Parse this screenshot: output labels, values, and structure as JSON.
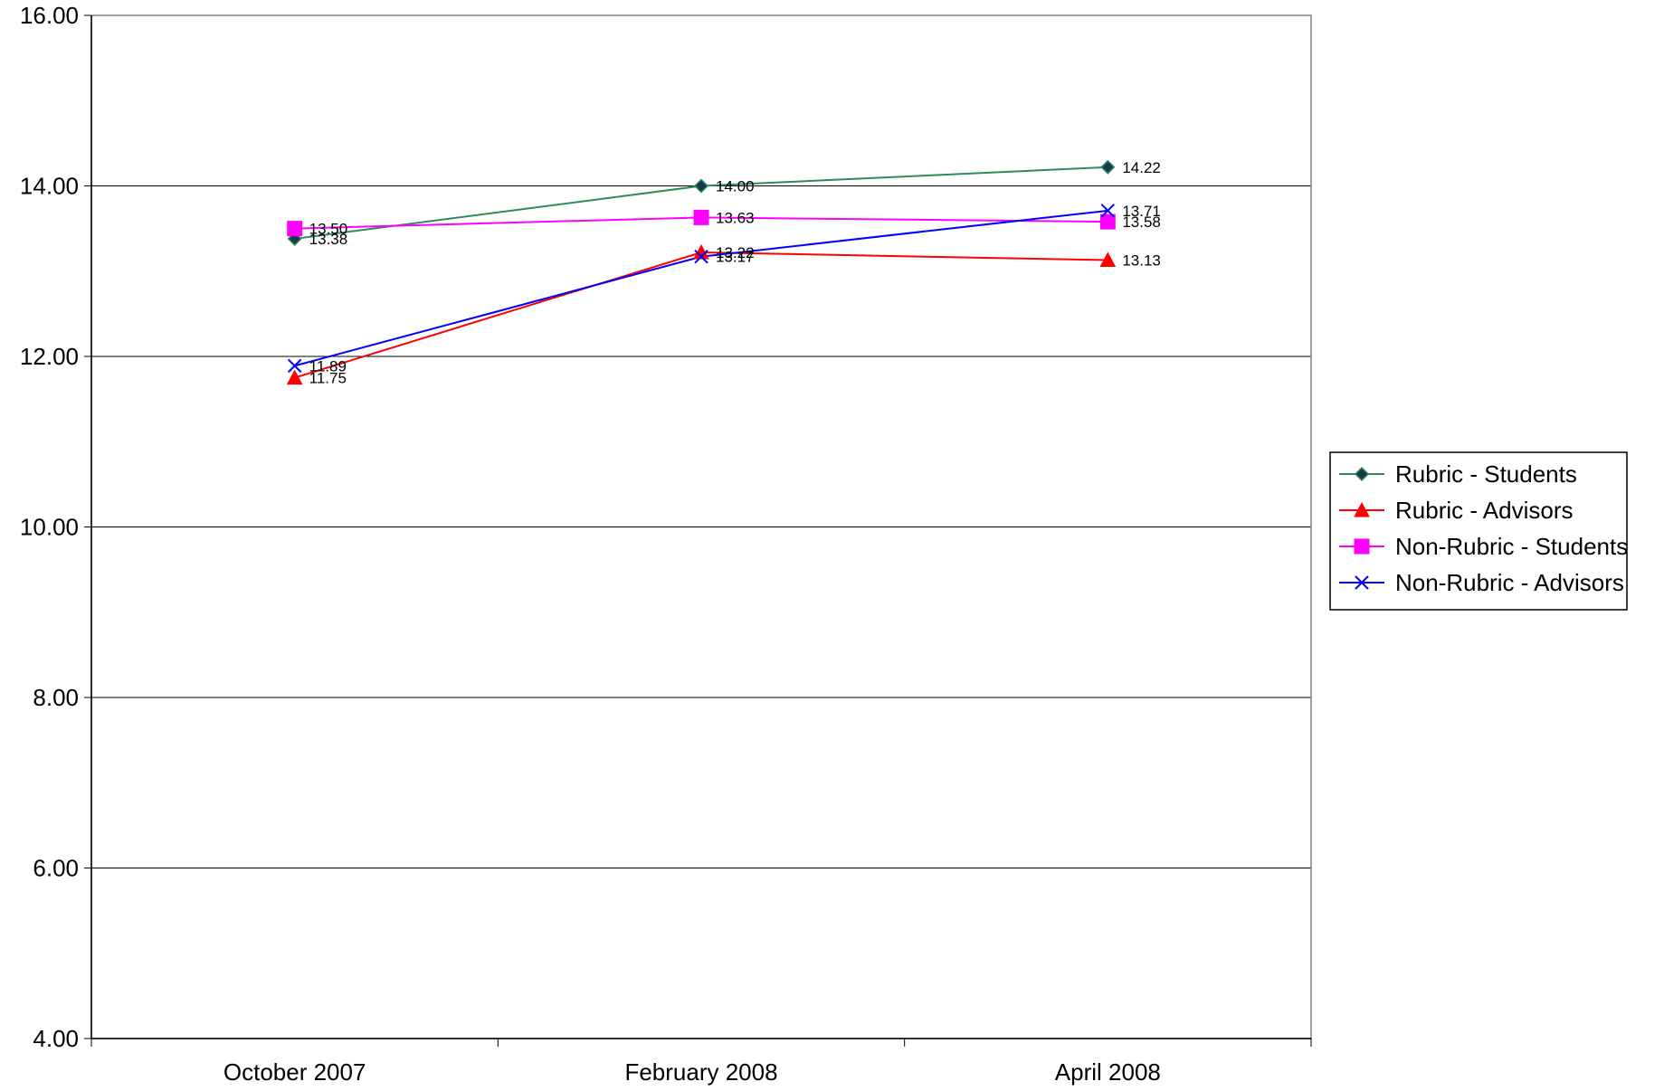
{
  "chart_data": {
    "type": "line",
    "categories": [
      "October 2007",
      "February 2008",
      "April 2008"
    ],
    "ylim": [
      4,
      16
    ],
    "y_ticks": [
      4,
      6,
      8,
      10,
      12,
      14,
      16
    ],
    "y_tick_labels": [
      "4.00",
      "6.00",
      "8.00",
      "10.00",
      "12.00",
      "14.00",
      "16.00"
    ],
    "grid": true,
    "legend_position": "right",
    "series": [
      {
        "name": "Rubric - Students",
        "color": "#2E8B57",
        "marker": "diamond",
        "values": [
          13.38,
          14.0,
          14.22
        ],
        "value_labels": [
          "13.38",
          "14.00",
          "14.22"
        ]
      },
      {
        "name": "Rubric - Advisors",
        "color": "#FF0000",
        "marker": "triangle",
        "values": [
          11.75,
          13.22,
          13.13
        ],
        "value_labels": [
          "11.75",
          "13.22",
          "13.13"
        ]
      },
      {
        "name": "Non-Rubric - Students",
        "color": "#FF00FF",
        "marker": "square",
        "values": [
          13.5,
          13.63,
          13.58
        ],
        "value_labels": [
          "13.50",
          "13.63",
          "13.58"
        ]
      },
      {
        "name": "Non-Rubric - Advisors",
        "color": "#0000FF",
        "marker": "x",
        "values": [
          11.89,
          13.17,
          13.71
        ],
        "value_labels": [
          "11.89",
          "13.17",
          "13.71"
        ]
      }
    ]
  }
}
